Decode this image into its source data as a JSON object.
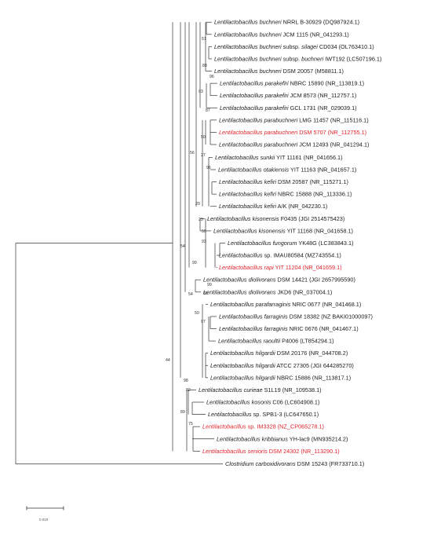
{
  "colors": {
    "normal": "#1a1a1a",
    "highlight": "#e0232b",
    "branch": "#333333"
  },
  "tips": [
    {
      "genus": "Lentilactobacillus",
      "species": "buchneri",
      "rest": " NRRL B-30929 (DQ987924.1)"
    },
    {
      "genus": "Lentilactobacillus",
      "species": "buchneri",
      "rest": " JCM 1115 (NR_041293.1)"
    },
    {
      "genus": "Lentilactobacillus",
      "species": "buchneri",
      "rest": " subsp. ",
      "rest_italic": "silagei",
      "rest2": " CD034 (OL763410.1)"
    },
    {
      "genus": "Lentilactobacillus",
      "species": "buchneri",
      "rest": " subsp. ",
      "rest_italic": "buchneri",
      "rest2": " IWT192 (LC507196.1)"
    },
    {
      "genus": "Lentilactobacillus",
      "species": "buchneri",
      "rest": " DSM 20057 (M58811.1)"
    },
    {
      "genus": "Lentilactobacillus",
      "species": "parakefiri",
      "rest": " NBRC 15890 (NR_113819.1)"
    },
    {
      "genus": "Lentilactobacillus",
      "species": "parakefiri",
      "rest": " JCM 8573 (NR_112757.1)"
    },
    {
      "genus": "Lentilactobacillus",
      "species": "parakefiri",
      "rest": " GCL 1731 (NR_029039.1)"
    },
    {
      "genus": "Lentilactobacillus",
      "species": "parabuchneri",
      "rest": " LMG 11457 (NR_115116.1)"
    },
    {
      "genus": "Lentilactobacillus",
      "species": "parabuchneri",
      "rest": " DSM 5707 (NR_112755.1)",
      "highlight": true
    },
    {
      "genus": "Lentilactobacillus",
      "species": "parabuchneri",
      "rest": " JCM 12493 (NR_041294.1)"
    },
    {
      "genus": "Lentilactobacillus",
      "species": "sunkii",
      "rest": " YIT 11161 (NR_041656.1)"
    },
    {
      "genus": "Lentilactobacillus",
      "species": "otakiensis",
      "rest": " YIT 11163 (NR_041657.1)"
    },
    {
      "genus": "Lentilactobacillus",
      "species": "kefiri",
      "rest": " DSM 20587 (NR_115271.1)"
    },
    {
      "genus": "Lentilactobacillus",
      "species": "kefiri",
      "rest": " NBRC 15888 (NR_113336.1)"
    },
    {
      "genus": "Lentilactobacillus",
      "species": "kefiri",
      "rest": " A/K (NR_042230.1)"
    },
    {
      "genus": "Lentilactobacillus",
      "species": "kisonensis",
      "rest": " F0435 (JGI 2514575423)"
    },
    {
      "genus": "Lentilactobacillus",
      "species": "kisonensis",
      "rest": " YIT 11168 (NR_041658.1)"
    },
    {
      "genus": "Lentilactobacillus",
      "species": "fungorum",
      "rest": " YK48G (LC383843.1)"
    },
    {
      "genus": "Lentilactobacillus",
      "species": "",
      "rest": " sp. IMAU80584 (MZ743554.1)"
    },
    {
      "genus": "Lentilactobacillus",
      "species": "rapi",
      "rest": " YIT 11204 (NR_041659.1)",
      "highlight": true
    },
    {
      "genus": "Lentilactobacillus",
      "species": "diolivorans",
      "rest": " DSM 14421 (JGI 2657995590)"
    },
    {
      "genus": "Lentilactobacillus",
      "species": "diolivorans",
      "rest": " JKD6 (NR_037004.1)"
    },
    {
      "genus": "Lentilactobacillus",
      "species": "parafarraginis",
      "rest": " NRIC 0677 (NR_041468.1)"
    },
    {
      "genus": "Lentilactobacillus",
      "species": "farraginis",
      "rest": " DSM 18382 (NZ BAKI01000097)"
    },
    {
      "genus": "Lentilactobacillus",
      "species": "farraginis",
      "rest": " NRIC 0676 (NR_041467.1)"
    },
    {
      "genus": "Lentilactobacillus",
      "species": "raoultii",
      "rest": " P4006 (LT854294.1)"
    },
    {
      "genus": "Lentilactobacillus",
      "species": "hilgardii",
      "rest": " DSM 20176 (NR_044708.2)"
    },
    {
      "genus": "Lentilactobacillus",
      "species": "hilgardii",
      "rest": " ATCC 27305 (JGI 644285270)"
    },
    {
      "genus": "Lentilactobacillus",
      "species": "hilgardii",
      "rest": " NBRC 15886 (NR_113817.1)"
    },
    {
      "genus": "Lentilactobacillus",
      "species": "curieae",
      "rest": " S1L19 (NR_109538.1)"
    },
    {
      "genus": "Lentilactobacillus",
      "species": "kosonis",
      "rest": " C06 (LC604908.1)"
    },
    {
      "genus": "Lentilactobacillus",
      "species": "",
      "rest": " sp. SPB1-3 (LC647650.1)"
    },
    {
      "genus": "Lentilactobacillus",
      "species": "",
      "rest": " sp. IM3328 (NZ_CP065278.1)",
      "highlight": true
    },
    {
      "genus": "Lentilactobacillus",
      "species": "kribbianus",
      "rest": " YH-lac9 (MN935214.2)"
    },
    {
      "genus": "Lentilactobacillus",
      "species": "senioris",
      "rest": " DSM 24302 (NR_113290.1)",
      "highlight": true
    },
    {
      "genus": "Clostridium",
      "species": "carboxidivorans",
      "rest": " DSM 15243 (FR733710.1)"
    }
  ],
  "bootstrap": [
    "51",
    "88",
    "96",
    "93",
    "87",
    "50",
    "27",
    "96",
    "56",
    "20",
    "23",
    "55",
    "93",
    "54",
    "99",
    "99",
    "86",
    "54",
    "50",
    "97",
    "44",
    "98",
    "82",
    "89",
    "75"
  ],
  "scale_bar": {
    "label": "0.010"
  }
}
